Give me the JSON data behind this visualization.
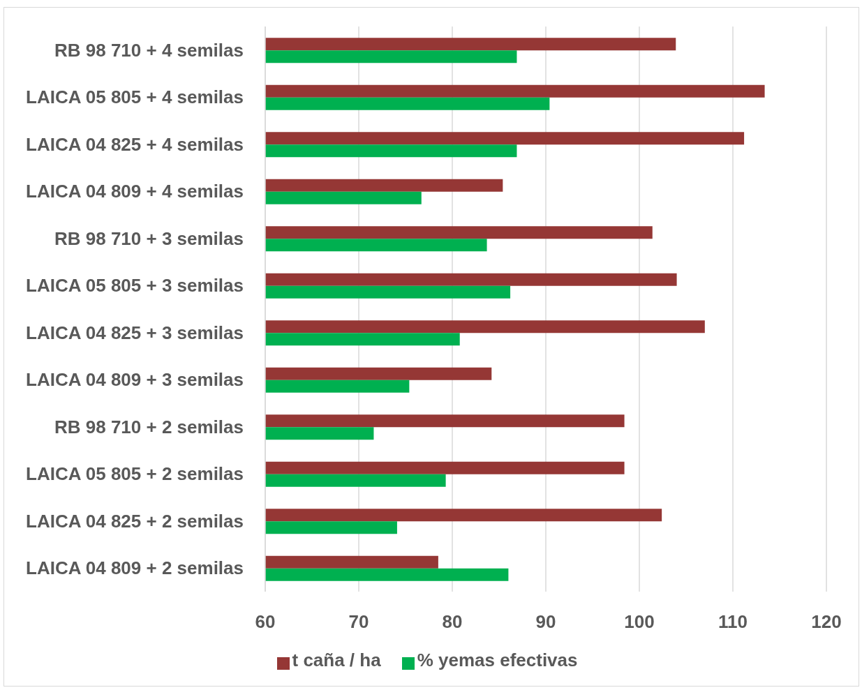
{
  "chart_data": {
    "type": "bar",
    "orientation": "horizontal",
    "categories": [
      "RB 98 710 + 4 semilas",
      "LAICA 05 805 + 4 semilas",
      "LAICA 04 825 + 4 semilas",
      "LAICA 04 809 + 4 semilas",
      "RB 98 710 + 3 semilas",
      "LAICA 05 805 + 3 semilas",
      "LAICA 04 825 + 3 semilas",
      "LAICA 04 809 + 3 semilas",
      "RB 98 710 + 2 semilas",
      "LAICA 05 805 + 2 semilas",
      "LAICA 04 825 + 2 semilas",
      "LAICA 04 809 + 2 semilas"
    ],
    "series": [
      {
        "name": "t caña / ha",
        "color": "#953735",
        "values": [
          103.9,
          113.4,
          111.2,
          85.4,
          101.4,
          104.0,
          107.0,
          84.2,
          98.4,
          98.4,
          102.4,
          78.5
        ]
      },
      {
        "name": "% yemas efectivas",
        "color": "#00b050",
        "values": [
          86.9,
          90.4,
          86.9,
          76.7,
          83.7,
          86.2,
          80.8,
          75.4,
          71.6,
          79.3,
          74.1,
          86.0
        ]
      }
    ],
    "xlim": [
      60,
      120
    ],
    "xticks": [
      60,
      70,
      80,
      90,
      100,
      110,
      120
    ],
    "grid": "x",
    "legend": "bottom"
  }
}
